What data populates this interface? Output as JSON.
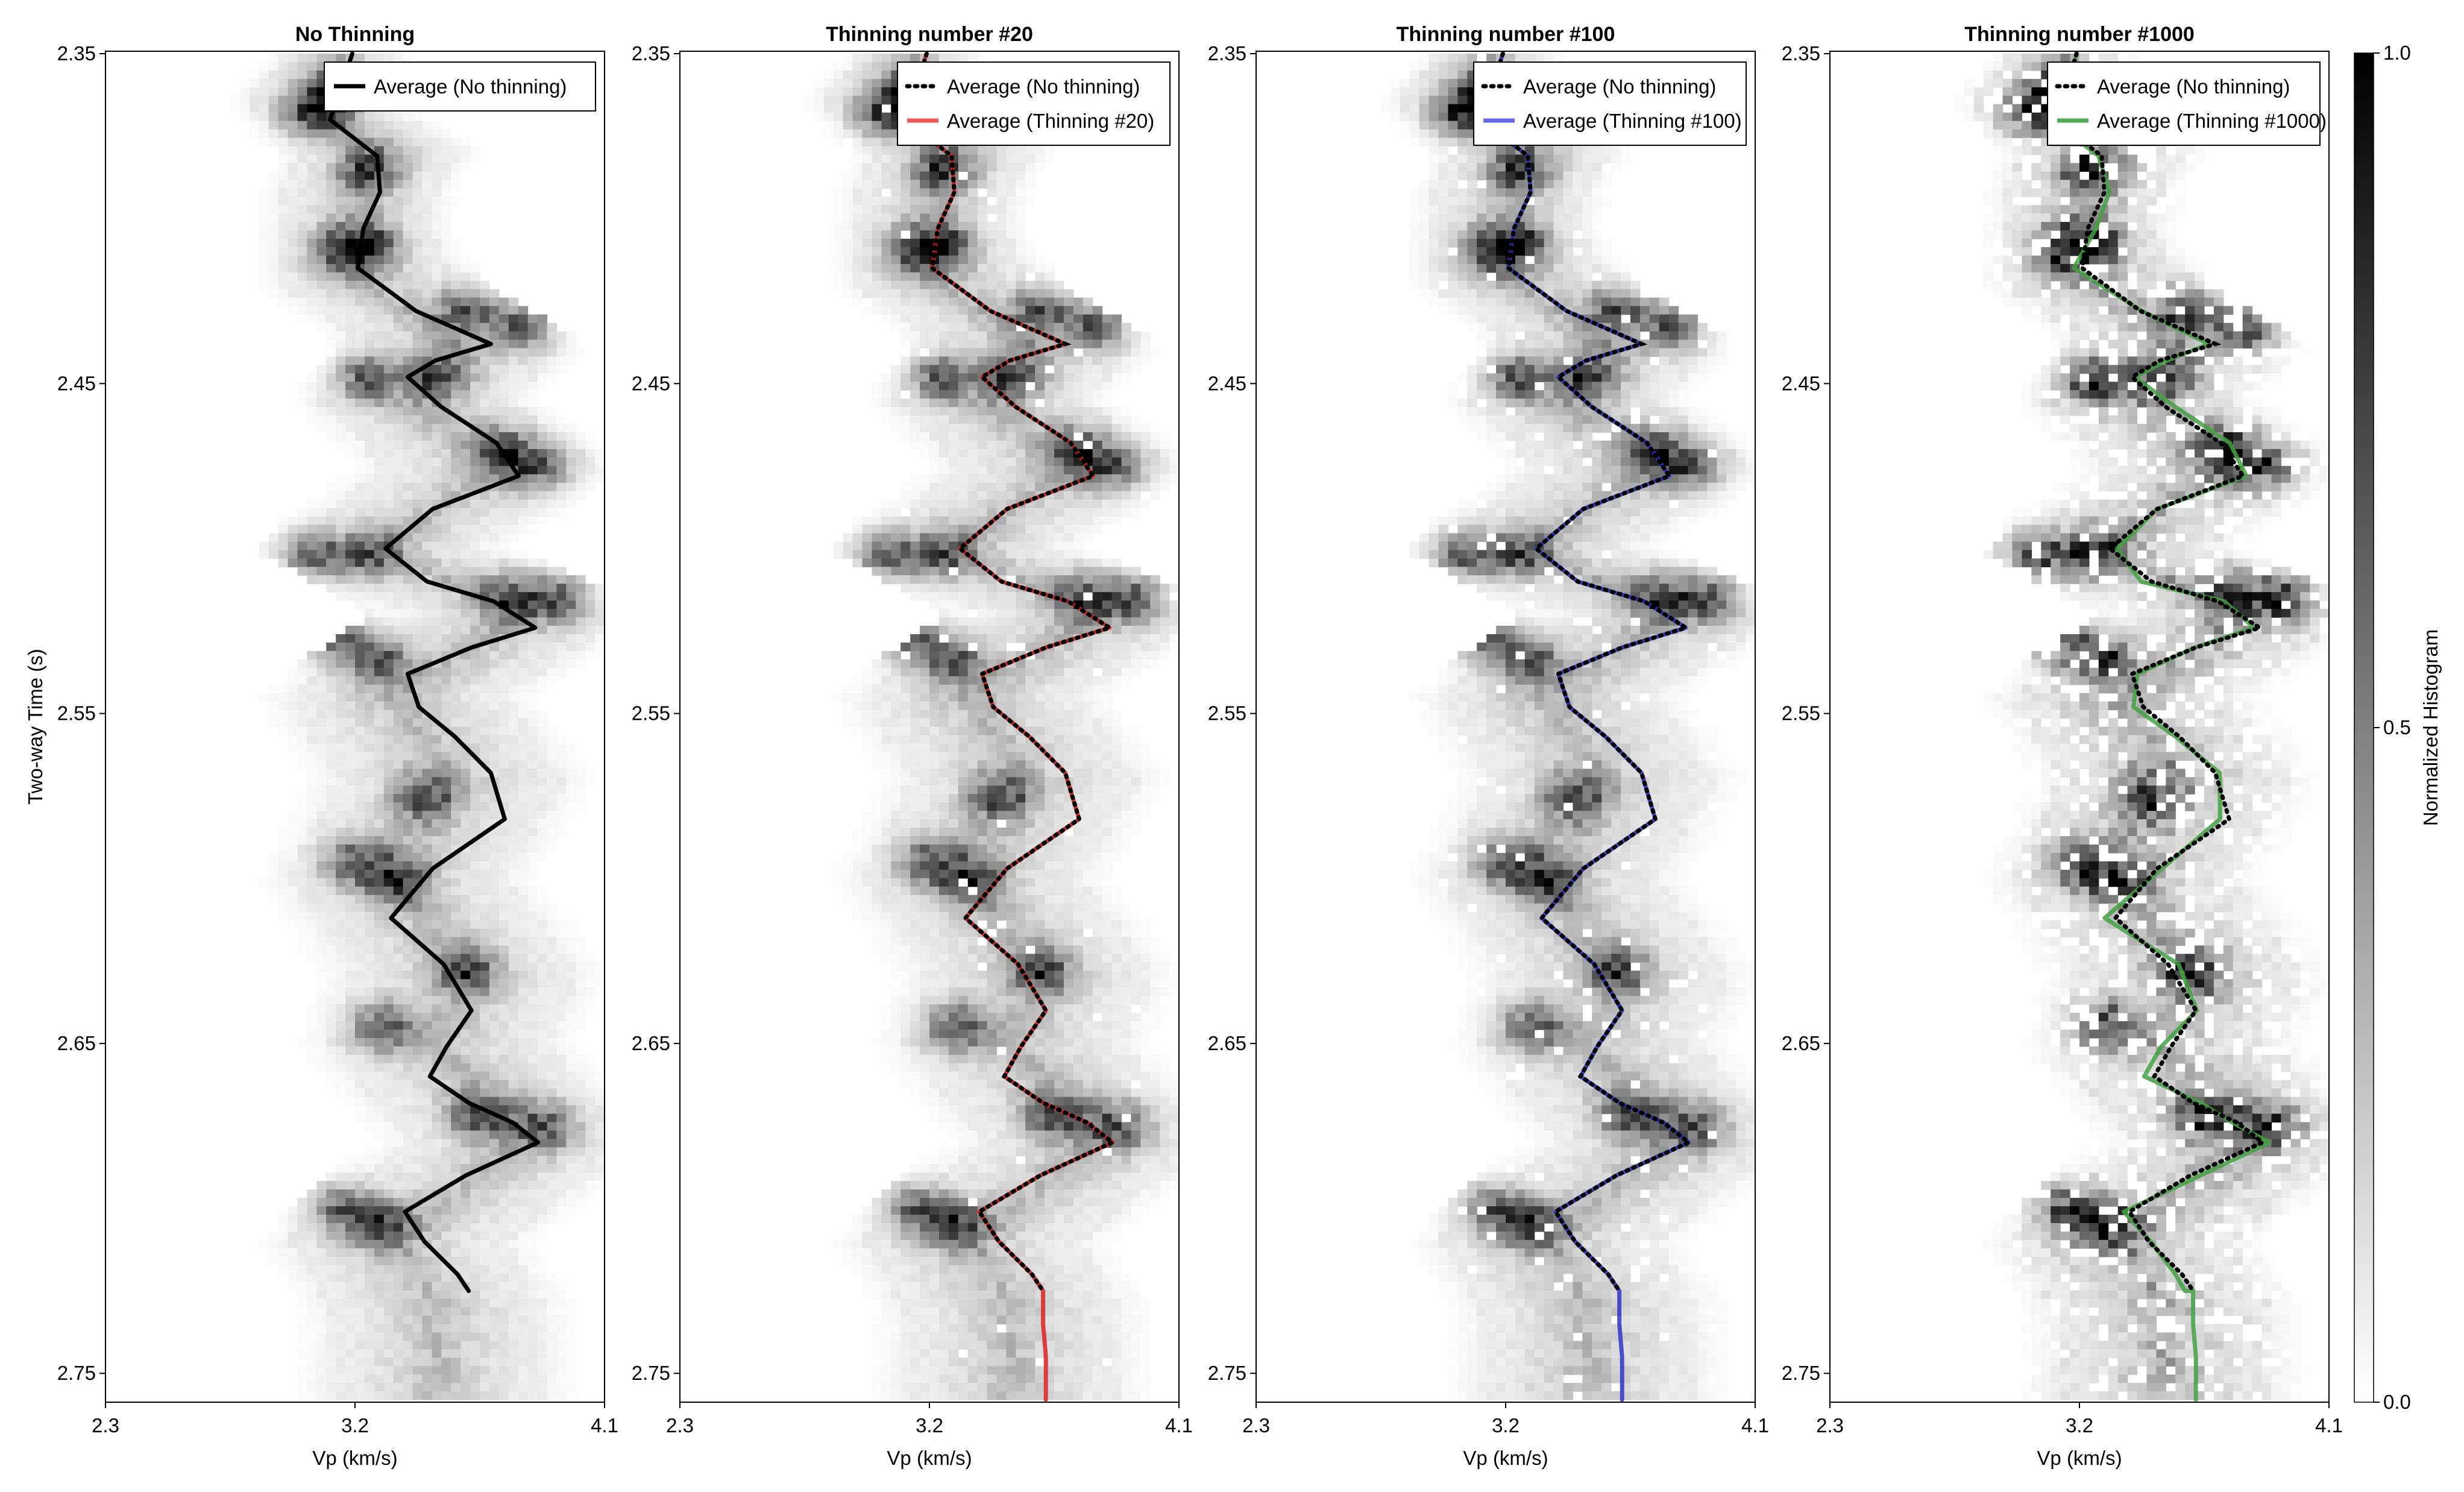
{
  "chart_data": {
    "type": "heatmap",
    "ylabel": "Two-way Time (s)",
    "colorbar": {
      "label": "Normalized Histogram",
      "range": [
        0.0,
        1.0
      ],
      "ticks": [
        "0.0",
        "0.5",
        "1.0"
      ],
      "colormap": "white-to-black"
    },
    "panels": [
      {
        "title": "No Thinning",
        "xlabel": "Vp (km/s)",
        "xticks": [
          "2.3",
          "3.2",
          "4.1"
        ],
        "yticks": [
          "2.35",
          "2.45",
          "2.55",
          "2.65",
          "2.75"
        ],
        "xlim": [
          2.3,
          4.1
        ],
        "ylim": [
          2.35,
          2.758
        ],
        "noise": 0.0,
        "legend": {
          "position": "top-right",
          "entries": [
            {
              "label": "Average (No thinning)",
              "color": "#000000",
              "style": "solid"
            }
          ]
        },
        "thinned_color": null
      },
      {
        "title": "Thinning number #20",
        "xlabel": "Vp (km/s)",
        "xticks": [
          "2.3",
          "3.2",
          "4.1"
        ],
        "yticks": [
          "2.35",
          "2.45",
          "2.55",
          "2.65",
          "2.75"
        ],
        "xlim": [
          2.3,
          4.1
        ],
        "ylim": [
          2.35,
          2.758
        ],
        "noise": 0.03,
        "legend": {
          "position": "top-right",
          "entries": [
            {
              "label": "Average (No thinning)",
              "color": "#000000",
              "style": "dotted"
            },
            {
              "label": "Average (Thinning #20)",
              "color": "#ee5a5a",
              "style": "solid"
            }
          ]
        },
        "thinned_color": "#dd2222"
      },
      {
        "title": "Thinning number #100",
        "xlabel": "Vp (km/s)",
        "xticks": [
          "2.3",
          "3.2",
          "4.1"
        ],
        "yticks": [
          "2.35",
          "2.45",
          "2.55",
          "2.65",
          "2.75"
        ],
        "xlim": [
          2.3,
          4.1
        ],
        "ylim": [
          2.35,
          2.758
        ],
        "noise": 0.06,
        "legend": {
          "position": "top-right",
          "entries": [
            {
              "label": "Average (No thinning)",
              "color": "#000000",
              "style": "dotted"
            },
            {
              "label": "Average (Thinning #100)",
              "color": "#6666ee",
              "style": "solid"
            }
          ]
        },
        "thinned_color": "#3333cc"
      },
      {
        "title": "Thinning number #1000",
        "xlabel": "Vp (km/s)",
        "xticks": [
          "2.3",
          "3.2",
          "4.1"
        ],
        "yticks": [
          "2.35",
          "2.45",
          "2.55",
          "2.65",
          "2.75"
        ],
        "xlim": [
          2.3,
          4.1
        ],
        "ylim": [
          2.35,
          2.758
        ],
        "noise": 0.3,
        "legend": {
          "position": "top-right",
          "entries": [
            {
              "label": "Average (No thinning)",
              "color": "#000000",
              "style": "dotted"
            },
            {
              "label": "Average (Thinning #1000)",
              "color": "#55aa55",
              "style": "solid"
            }
          ]
        },
        "thinned_color": "#44a044"
      }
    ],
    "average_curve": {
      "t": [
        2.35,
        2.358,
        2.37,
        2.381,
        2.392,
        2.403,
        2.415,
        2.428,
        2.438,
        2.443,
        2.448,
        2.457,
        2.468,
        2.478,
        2.488,
        2.5,
        2.51,
        2.516,
        2.524,
        2.53,
        2.538,
        2.548,
        2.557,
        2.568,
        2.582,
        2.597,
        2.612,
        2.626,
        2.64,
        2.651,
        2.66,
        2.668,
        2.674,
        2.68,
        2.69,
        2.701,
        2.71,
        2.72,
        2.725
      ],
      "vp": [
        3.19,
        3.16,
        3.11,
        3.28,
        3.29,
        3.23,
        3.21,
        3.42,
        3.69,
        3.49,
        3.39,
        3.51,
        3.71,
        3.79,
        3.48,
        3.31,
        3.46,
        3.7,
        3.85,
        3.62,
        3.39,
        3.43,
        3.56,
        3.69,
        3.74,
        3.48,
        3.33,
        3.52,
        3.62,
        3.53,
        3.47,
        3.61,
        3.77,
        3.86,
        3.6,
        3.38,
        3.45,
        3.57,
        3.61
      ]
    },
    "thinned_extension": {
      "t": [
        2.725,
        2.735,
        2.745,
        2.758
      ],
      "vp": [
        3.61,
        3.61,
        3.62,
        3.62
      ]
    },
    "density_bands": {
      "t": [
        2.35,
        2.365,
        2.38,
        2.39,
        2.405,
        2.42,
        2.44,
        2.455,
        2.475,
        2.5,
        2.52,
        2.545,
        2.57,
        2.6,
        2.63,
        2.65,
        2.68,
        2.71,
        2.73,
        2.758
      ],
      "center": [
        3.15,
        3.05,
        3.3,
        3.22,
        3.2,
        3.25,
        3.6,
        3.4,
        3.7,
        3.3,
        3.8,
        3.35,
        3.55,
        3.35,
        3.6,
        3.5,
        3.8,
        3.35,
        3.5,
        3.5
      ],
      "width": [
        0.2,
        0.25,
        0.3,
        0.28,
        0.28,
        0.32,
        0.35,
        0.35,
        0.4,
        0.35,
        0.4,
        0.4,
        0.42,
        0.4,
        0.42,
        0.4,
        0.42,
        0.4,
        0.4,
        0.4
      ]
    },
    "dark_spots": [
      {
        "vp": 3.12,
        "t": 2.362
      },
      {
        "vp": 3.05,
        "t": 2.368
      },
      {
        "vp": 3.25,
        "t": 2.385
      },
      {
        "vp": 3.15,
        "t": 2.41
      },
      {
        "vp": 3.25,
        "t": 2.408
      },
      {
        "vp": 3.8,
        "t": 2.432
      },
      {
        "vp": 3.6,
        "t": 2.428
      },
      {
        "vp": 3.25,
        "t": 2.448
      },
      {
        "vp": 3.5,
        "t": 2.448
      },
      {
        "vp": 3.85,
        "t": 2.475
      },
      {
        "vp": 3.72,
        "t": 2.47
      },
      {
        "vp": 3.05,
        "t": 2.502
      },
      {
        "vp": 3.25,
        "t": 2.502
      },
      {
        "vp": 3.93,
        "t": 2.515
      },
      {
        "vp": 3.75,
        "t": 2.515
      },
      {
        "vp": 3.15,
        "t": 2.528
      },
      {
        "vp": 3.3,
        "t": 2.535
      },
      {
        "vp": 3.45,
        "t": 2.575
      },
      {
        "vp": 3.2,
        "t": 2.595
      },
      {
        "vp": 3.35,
        "t": 2.6
      },
      {
        "vp": 3.3,
        "t": 2.645
      },
      {
        "vp": 3.6,
        "t": 2.628
      },
      {
        "vp": 3.88,
        "t": 2.675
      },
      {
        "vp": 3.65,
        "t": 2.672
      },
      {
        "vp": 3.15,
        "t": 2.7
      },
      {
        "vp": 3.3,
        "t": 2.705
      }
    ]
  }
}
